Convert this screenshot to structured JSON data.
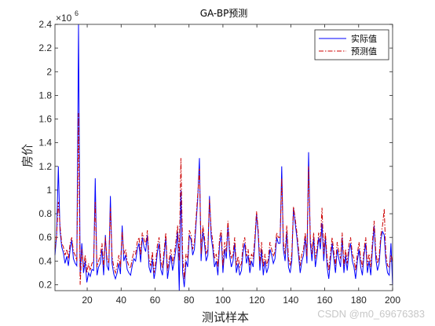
{
  "chart_data": {
    "type": "line",
    "title": "GA-BP预测",
    "xlabel": "测试样本",
    "ylabel": "房价",
    "exponent_label": "×10",
    "exponent_power": "6",
    "xlim": [
      1,
      200
    ],
    "ylim": [
      0.15,
      2.4
    ],
    "xticks": [
      20,
      40,
      60,
      80,
      100,
      120,
      140,
      160,
      180,
      200
    ],
    "yticks": [
      0.2,
      0.4,
      0.6,
      0.8,
      1,
      1.2,
      1.4,
      1.6,
      1.8,
      2,
      2.2,
      2.4
    ],
    "legend_position": "top-right",
    "series": [
      {
        "name": "实际值",
        "color": "#0000ff",
        "style": "solid",
        "values": [
          0.45,
          0.62,
          1.2,
          0.66,
          0.52,
          0.47,
          0.38,
          0.44,
          0.36,
          0.5,
          0.58,
          0.42,
          0.38,
          0.36,
          2.4,
          0.28,
          0.55,
          0.3,
          0.4,
          0.22,
          0.3,
          0.27,
          0.33,
          0.32,
          1.1,
          0.28,
          0.35,
          0.38,
          0.5,
          0.28,
          0.62,
          0.36,
          0.32,
          0.95,
          0.38,
          0.29,
          0.25,
          0.3,
          0.38,
          0.29,
          0.7,
          0.4,
          0.45,
          0.33,
          0.3,
          0.28,
          0.36,
          0.42,
          0.4,
          0.5,
          0.55,
          0.39,
          0.6,
          0.52,
          0.48,
          0.62,
          0.35,
          0.3,
          0.42,
          0.25,
          0.34,
          0.48,
          0.55,
          0.33,
          0.28,
          0.45,
          0.6,
          0.25,
          0.36,
          0.45,
          0.32,
          0.4,
          0.5,
          0.65,
          0.15,
          1.0,
          0.3,
          0.18,
          0.4,
          0.35,
          0.62,
          0.58,
          0.45,
          0.5,
          0.72,
          0.92,
          1.27,
          0.4,
          0.65,
          0.55,
          0.4,
          0.45,
          0.95,
          0.6,
          0.5,
          0.35,
          0.4,
          0.28,
          0.55,
          0.62,
          0.3,
          0.5,
          0.42,
          0.7,
          0.45,
          0.35,
          0.4,
          0.55,
          0.3,
          0.38,
          0.28,
          0.32,
          0.48,
          0.55,
          0.38,
          0.45,
          0.3,
          0.4,
          0.35,
          0.55,
          0.8,
          0.62,
          0.32,
          0.5,
          0.28,
          0.4,
          0.3,
          0.35,
          0.5,
          0.45,
          0.38,
          0.42,
          0.6,
          0.55,
          0.55,
          1.2,
          0.5,
          0.4,
          0.65,
          0.35,
          0.3,
          0.4,
          0.85,
          0.72,
          0.6,
          0.45,
          0.3,
          0.4,
          0.45,
          0.6,
          0.38,
          1.32,
          0.55,
          0.4,
          0.6,
          0.35,
          0.45,
          0.6,
          0.5,
          0.72,
          0.4,
          0.6,
          0.35,
          0.25,
          0.4,
          0.55,
          0.42,
          0.3,
          0.5,
          0.42,
          0.35,
          0.6,
          0.3,
          0.45,
          0.32,
          0.48,
          0.55,
          0.4,
          0.35,
          0.25,
          0.4,
          0.5,
          0.35,
          0.28,
          0.45,
          0.55,
          0.3,
          0.4,
          0.28,
          0.5,
          0.7,
          0.42,
          0.32,
          0.38,
          0.58,
          0.65,
          0.62,
          0.4,
          0.3,
          0.28,
          0.55,
          0.2
        ]
      },
      {
        "name": "预测值",
        "color": "#cc0000",
        "style": "dashdot",
        "values": [
          0.5,
          0.62,
          0.9,
          0.7,
          0.55,
          0.52,
          0.45,
          0.5,
          0.42,
          0.55,
          0.6,
          0.48,
          0.45,
          0.4,
          1.65,
          0.2,
          0.5,
          0.35,
          0.45,
          0.3,
          0.38,
          0.32,
          0.38,
          0.4,
          0.9,
          0.35,
          0.4,
          0.45,
          0.55,
          0.35,
          0.6,
          0.42,
          0.38,
          0.85,
          0.44,
          0.35,
          0.3,
          0.36,
          0.45,
          0.35,
          0.65,
          0.46,
          0.5,
          0.4,
          0.36,
          0.34,
          0.42,
          0.48,
          0.46,
          0.56,
          0.6,
          0.45,
          0.64,
          0.58,
          0.54,
          0.66,
          0.42,
          0.36,
          0.48,
          0.3,
          0.4,
          0.54,
          0.6,
          0.4,
          0.34,
          0.5,
          0.64,
          0.32,
          0.42,
          0.5,
          0.38,
          0.46,
          0.56,
          0.7,
          0.4,
          1.27,
          0.45,
          0.25,
          0.46,
          0.42,
          0.66,
          0.62,
          0.5,
          0.56,
          0.76,
          0.96,
          1.18,
          0.46,
          0.7,
          0.6,
          0.46,
          0.5,
          0.92,
          0.66,
          0.56,
          0.42,
          0.46,
          0.35,
          0.6,
          0.66,
          0.36,
          0.56,
          0.48,
          0.74,
          0.5,
          0.42,
          0.46,
          0.6,
          0.36,
          0.44,
          0.35,
          0.38,
          0.54,
          0.6,
          0.44,
          0.5,
          0.36,
          0.46,
          0.42,
          0.6,
          0.82,
          0.66,
          0.38,
          0.56,
          0.35,
          0.46,
          0.36,
          0.42,
          0.56,
          0.5,
          0.44,
          0.48,
          0.64,
          0.6,
          0.6,
          1.1,
          0.56,
          0.46,
          0.7,
          0.42,
          0.36,
          0.46,
          0.86,
          0.76,
          0.64,
          0.5,
          0.36,
          0.46,
          0.5,
          0.64,
          0.44,
          1.2,
          0.6,
          0.46,
          0.64,
          0.42,
          0.5,
          0.64,
          0.56,
          0.85,
          0.46,
          0.64,
          0.42,
          0.32,
          0.46,
          0.6,
          0.48,
          0.36,
          0.56,
          0.48,
          0.42,
          0.64,
          0.36,
          0.5,
          0.38,
          0.54,
          0.6,
          0.46,
          0.42,
          0.32,
          0.46,
          0.56,
          0.42,
          0.35,
          0.5,
          0.6,
          0.36,
          0.46,
          0.35,
          0.56,
          0.74,
          0.48,
          0.38,
          0.44,
          0.62,
          0.7,
          0.84,
          0.46,
          0.36,
          0.35,
          0.45,
          0.4
        ]
      }
    ]
  },
  "watermark": "CSDN @m0_69676383"
}
